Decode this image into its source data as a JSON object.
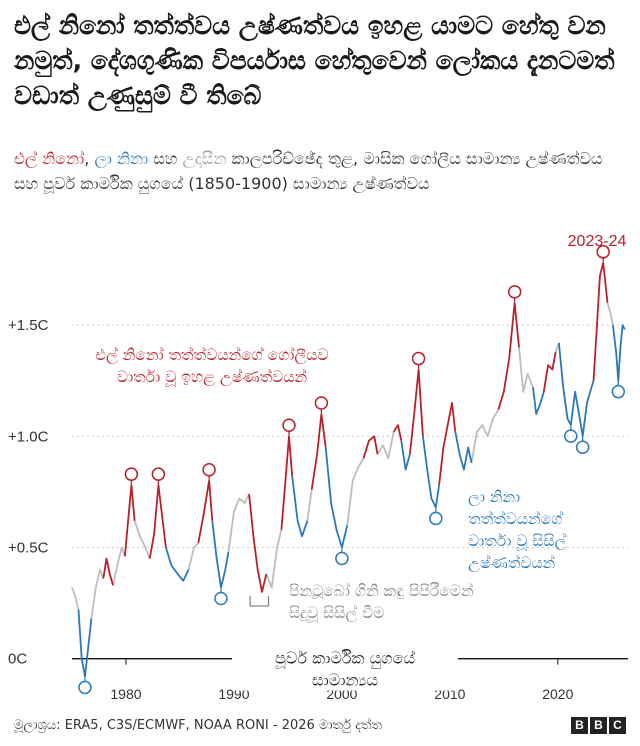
{
  "title": "එල් නිනෝ තත්ත්වය උෂ්ණත්වය ඉහළ යාමට හේතු වන නමුත්, දේශගුණික විපර්යාස හේතුවෙන් ලෝකය දැනටමත් වඩාත් උණුසුම් වී තිබේ",
  "subtitle": {
    "elnino": "එල් නිනෝ",
    "sep1": ", ",
    "lanina": "ලා නිනා",
    "sep2": " සහ ",
    "neutral": "උදාසීන",
    "rest": " කාලපරිච්ඡේද තුළ, මාසික ගෝලීය සාමාන්‍ය උෂ්ණත්වය සහ පූර්ව කාර්මික යුගයේ (1850-1900) සාමාන්‍ය උෂ්ණත්වය"
  },
  "colors": {
    "elnino": "#b8212b",
    "lanina": "#2c78b8",
    "neutral": "#bdbdbd",
    "annotation": "#8a8a8a",
    "text": "#222222"
  },
  "footer": "මූලාශ්‍රය: ERA5, C3S/ECMWF, NOAA RONI - 2026 මාර්තු දත්ත",
  "logo": [
    "B",
    "B",
    "C"
  ],
  "chart_data": {
    "type": "line",
    "title": "",
    "xlabel": "",
    "ylabel": "",
    "xlim": [
      1975,
      2026.5
    ],
    "ylim": [
      -0.15,
      1.95
    ],
    "x_ticks": [
      1980,
      1990,
      2000,
      2010,
      2020
    ],
    "y_ticks": [
      0,
      0.5,
      1.0,
      1.5
    ],
    "y_tick_labels": [
      "0C",
      "+0.5C",
      "+1.0C",
      "+1.5C"
    ],
    "baseline_label": [
      "පූර්ව කාර්මික යුගයේ",
      "සාමාන්‍යය"
    ],
    "series": [
      {
        "name": "එල් නිනෝ",
        "phase": "elnino"
      },
      {
        "name": "ලා නිනා",
        "phase": "lanina"
      },
      {
        "name": "උදාසීන",
        "phase": "neutral"
      }
    ],
    "segments": [
      {
        "phase": "neutral",
        "points": [
          [
            1975.0,
            0.32
          ],
          [
            1975.3,
            0.28
          ],
          [
            1975.6,
            0.22
          ]
        ]
      },
      {
        "phase": "lanina",
        "points": [
          [
            1975.6,
            0.22
          ],
          [
            1975.9,
            0.0
          ],
          [
            1976.2,
            -0.08
          ],
          [
            1976.5,
            0.05
          ],
          [
            1976.8,
            0.18
          ]
        ]
      },
      {
        "phase": "neutral",
        "points": [
          [
            1976.8,
            0.18
          ],
          [
            1977.2,
            0.32
          ],
          [
            1977.6,
            0.4
          ],
          [
            1977.9,
            0.36
          ]
        ]
      },
      {
        "phase": "elnino",
        "points": [
          [
            1977.9,
            0.36
          ],
          [
            1978.2,
            0.45
          ],
          [
            1978.5,
            0.38
          ],
          [
            1978.8,
            0.33
          ]
        ]
      },
      {
        "phase": "neutral",
        "points": [
          [
            1978.8,
            0.33
          ],
          [
            1979.2,
            0.42
          ],
          [
            1979.6,
            0.5
          ],
          [
            1979.9,
            0.46
          ]
        ]
      },
      {
        "phase": "elnino",
        "points": [
          [
            1979.9,
            0.46
          ],
          [
            1980.2,
            0.62
          ],
          [
            1980.5,
            0.78
          ],
          [
            1980.8,
            0.62
          ]
        ]
      },
      {
        "phase": "neutral",
        "points": [
          [
            1980.8,
            0.62
          ],
          [
            1981.3,
            0.55
          ],
          [
            1981.8,
            0.5
          ],
          [
            1982.2,
            0.45
          ]
        ]
      },
      {
        "phase": "elnino",
        "points": [
          [
            1982.2,
            0.45
          ],
          [
            1982.6,
            0.56
          ],
          [
            1983.0,
            0.78
          ],
          [
            1983.4,
            0.62
          ],
          [
            1983.7,
            0.5
          ]
        ]
      },
      {
        "phase": "lanina",
        "points": [
          [
            1983.7,
            0.5
          ],
          [
            1984.2,
            0.42
          ],
          [
            1984.8,
            0.38
          ],
          [
            1985.3,
            0.35
          ],
          [
            1985.8,
            0.4
          ]
        ]
      },
      {
        "phase": "neutral",
        "points": [
          [
            1985.8,
            0.4
          ],
          [
            1986.3,
            0.5
          ],
          [
            1986.7,
            0.52
          ]
        ]
      },
      {
        "phase": "elnino",
        "points": [
          [
            1986.7,
            0.52
          ],
          [
            1987.2,
            0.65
          ],
          [
            1987.7,
            0.8
          ],
          [
            1988.0,
            0.62
          ]
        ]
      },
      {
        "phase": "lanina",
        "points": [
          [
            1988.0,
            0.62
          ],
          [
            1988.4,
            0.45
          ],
          [
            1988.8,
            0.32
          ],
          [
            1989.2,
            0.4
          ],
          [
            1989.5,
            0.48
          ]
        ]
      },
      {
        "phase": "neutral",
        "points": [
          [
            1989.5,
            0.48
          ],
          [
            1990.0,
            0.66
          ],
          [
            1990.5,
            0.72
          ],
          [
            1991.0,
            0.7
          ],
          [
            1991.4,
            0.74
          ]
        ]
      },
      {
        "phase": "elnino",
        "points": [
          [
            1991.4,
            0.74
          ],
          [
            1991.8,
            0.55
          ],
          [
            1992.2,
            0.4
          ],
          [
            1992.6,
            0.3
          ],
          [
            1993.0,
            0.38
          ]
        ]
      },
      {
        "phase": "neutral",
        "points": [
          [
            1993.0,
            0.38
          ],
          [
            1993.5,
            0.32
          ],
          [
            1994.0,
            0.5
          ],
          [
            1994.4,
            0.58
          ]
        ]
      },
      {
        "phase": "elnino",
        "points": [
          [
            1994.4,
            0.58
          ],
          [
            1994.8,
            0.82
          ],
          [
            1995.1,
            1.0
          ],
          [
            1995.4,
            0.82
          ]
        ]
      },
      {
        "phase": "lanina",
        "points": [
          [
            1995.4,
            0.82
          ],
          [
            1995.9,
            0.62
          ],
          [
            1996.3,
            0.55
          ],
          [
            1996.8,
            0.62
          ]
        ]
      },
      {
        "phase": "neutral",
        "points": [
          [
            1996.8,
            0.62
          ],
          [
            1997.2,
            0.76
          ]
        ]
      },
      {
        "phase": "elnino",
        "points": [
          [
            1997.2,
            0.76
          ],
          [
            1997.7,
            0.92
          ],
          [
            1998.1,
            1.1
          ],
          [
            1998.5,
            0.95
          ]
        ]
      },
      {
        "phase": "lanina",
        "points": [
          [
            1998.5,
            0.95
          ],
          [
            1999.0,
            0.7
          ],
          [
            1999.5,
            0.58
          ],
          [
            2000.0,
            0.5
          ],
          [
            2000.5,
            0.6
          ]
        ]
      },
      {
        "phase": "neutral",
        "points": [
          [
            2000.5,
            0.6
          ],
          [
            2001.0,
            0.8
          ],
          [
            2001.5,
            0.86
          ],
          [
            2002.0,
            0.9
          ]
        ]
      },
      {
        "phase": "elnino",
        "points": [
          [
            2002.0,
            0.9
          ],
          [
            2002.5,
            0.98
          ],
          [
            2003.0,
            1.0
          ],
          [
            2003.3,
            0.92
          ]
        ]
      },
      {
        "phase": "neutral",
        "points": [
          [
            2003.3,
            0.92
          ],
          [
            2003.8,
            0.96
          ],
          [
            2004.3,
            0.9
          ],
          [
            2004.8,
            1.02
          ]
        ]
      },
      {
        "phase": "elnino",
        "points": [
          [
            2004.8,
            1.02
          ],
          [
            2005.2,
            1.05
          ],
          [
            2005.5,
            0.98
          ]
        ]
      },
      {
        "phase": "lanina",
        "points": [
          [
            2005.5,
            0.98
          ],
          [
            2005.9,
            0.85
          ],
          [
            2006.3,
            0.92
          ]
        ]
      },
      {
        "phase": "elnino",
        "points": [
          [
            2006.3,
            0.92
          ],
          [
            2006.7,
            1.1
          ],
          [
            2007.1,
            1.3
          ],
          [
            2007.5,
            1.0
          ]
        ]
      },
      {
        "phase": "lanina",
        "points": [
          [
            2007.5,
            1.0
          ],
          [
            2007.9,
            0.85
          ],
          [
            2008.3,
            0.72
          ],
          [
            2008.7,
            0.68
          ],
          [
            2009.0,
            0.78
          ]
        ]
      },
      {
        "phase": "elnino",
        "points": [
          [
            2009.0,
            0.78
          ],
          [
            2009.4,
            0.95
          ],
          [
            2009.8,
            1.05
          ],
          [
            2010.2,
            1.15
          ],
          [
            2010.5,
            1.02
          ]
        ]
      },
      {
        "phase": "lanina",
        "points": [
          [
            2010.5,
            1.02
          ],
          [
            2010.9,
            0.92
          ],
          [
            2011.3,
            0.85
          ],
          [
            2011.7,
            0.95
          ],
          [
            2012.0,
            0.88
          ]
        ]
      },
      {
        "phase": "neutral",
        "points": [
          [
            2012.0,
            0.88
          ],
          [
            2012.5,
            1.02
          ],
          [
            2013.0,
            1.05
          ],
          [
            2013.5,
            1.0
          ],
          [
            2014.0,
            1.08
          ],
          [
            2014.5,
            1.12
          ]
        ]
      },
      {
        "phase": "elnino",
        "points": [
          [
            2014.5,
            1.12
          ],
          [
            2015.0,
            1.2
          ],
          [
            2015.5,
            1.35
          ],
          [
            2016.0,
            1.6
          ],
          [
            2016.4,
            1.4
          ]
        ]
      },
      {
        "phase": "neutral",
        "points": [
          [
            2016.4,
            1.4
          ],
          [
            2016.8,
            1.2
          ],
          [
            2017.2,
            1.28
          ],
          [
            2017.7,
            1.22
          ]
        ]
      },
      {
        "phase": "lanina",
        "points": [
          [
            2017.7,
            1.22
          ],
          [
            2018.0,
            1.1
          ],
          [
            2018.4,
            1.15
          ],
          [
            2018.7,
            1.2
          ]
        ]
      },
      {
        "phase": "elnino",
        "points": [
          [
            2018.7,
            1.2
          ],
          [
            2019.1,
            1.32
          ],
          [
            2019.5,
            1.3
          ],
          [
            2019.8,
            1.38
          ]
        ]
      },
      {
        "phase": "neutral",
        "points": [
          [
            2019.8,
            1.38
          ],
          [
            2020.1,
            1.42
          ]
        ]
      },
      {
        "phase": "lanina",
        "points": [
          [
            2020.1,
            1.42
          ],
          [
            2020.5,
            1.22
          ],
          [
            2020.9,
            1.08
          ],
          [
            2021.2,
            1.05
          ],
          [
            2021.6,
            1.2
          ],
          [
            2021.9,
            1.12
          ],
          [
            2022.3,
            1.0
          ],
          [
            2022.7,
            1.15
          ],
          [
            2023.0,
            1.2
          ],
          [
            2023.3,
            1.25
          ]
        ]
      },
      {
        "phase": "elnino",
        "points": [
          [
            2023.3,
            1.25
          ],
          [
            2023.6,
            1.48
          ],
          [
            2023.9,
            1.72
          ],
          [
            2024.2,
            1.78
          ],
          [
            2024.6,
            1.6
          ]
        ]
      },
      {
        "phase": "neutral",
        "points": [
          [
            2024.6,
            1.6
          ],
          [
            2024.9,
            1.55
          ],
          [
            2025.1,
            1.5
          ]
        ]
      },
      {
        "phase": "lanina",
        "points": [
          [
            2025.1,
            1.5
          ],
          [
            2025.4,
            1.38
          ],
          [
            2025.6,
            1.25
          ],
          [
            2025.8,
            1.4
          ],
          [
            2026.0,
            1.5
          ],
          [
            2026.2,
            1.48
          ]
        ]
      }
    ],
    "elnino_peaks": [
      [
        1980.5,
        0.78
      ],
      [
        1983.0,
        0.78
      ],
      [
        1987.7,
        0.8
      ],
      [
        1995.1,
        1.0
      ],
      [
        1998.1,
        1.1
      ],
      [
        2007.1,
        1.3
      ],
      [
        2016.0,
        1.6
      ],
      [
        2024.2,
        1.78
      ]
    ],
    "lanina_troughs": [
      [
        1976.2,
        -0.08
      ],
      [
        1988.8,
        0.32
      ],
      [
        2000.0,
        0.5
      ],
      [
        2008.7,
        0.68
      ],
      [
        2021.2,
        1.05
      ],
      [
        2022.3,
        1.0
      ],
      [
        2025.6,
        1.25
      ]
    ],
    "annotations": {
      "peak_2023": "2023-24",
      "elnino": [
        "එල් නිනෝ තත්ත්වයන්ගේ ගෝලීයව",
        "වාර්තා වූ ඉහළ උෂ්ණත්වයන්"
      ],
      "lanina": [
        "ලා නිනා",
        "තත්ත්වයන්ගේ",
        "වාර්තා වූ සිසිල්",
        "උෂ්ණත්වයන්"
      ],
      "pinatubo": [
        "පිනටූබෝ ගිනි කඳු පිපිරීමෙන්",
        "සිදුවූ සිසිල් වීම"
      ],
      "pinatubo_range": [
        1991.5,
        1993.2
      ]
    }
  }
}
